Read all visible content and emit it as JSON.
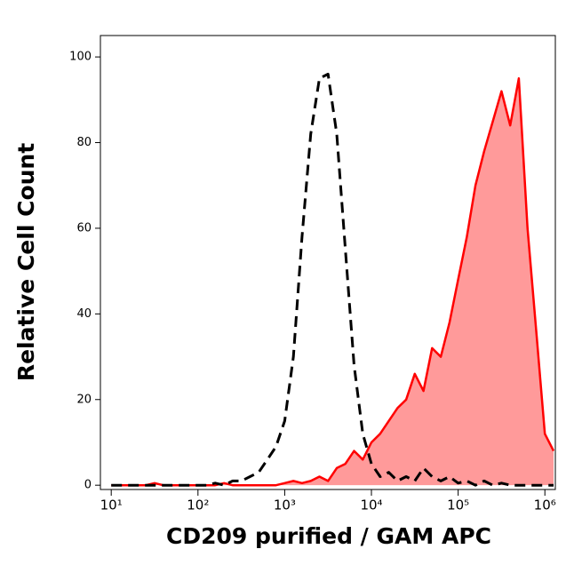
{
  "chart_data": {
    "type": "histogram-overlay",
    "x_label": "CD209 purified / GAM APC",
    "y_label": "Relative Cell Count",
    "x_scale": "log",
    "xlim": [
      7.5,
      1320000
    ],
    "xticks": [
      {
        "value": 10,
        "label": "10¹"
      },
      {
        "value": 100,
        "label": "10²"
      },
      {
        "value": 1000,
        "label": "10³"
      },
      {
        "value": 10000,
        "label": "10⁴"
      },
      {
        "value": 100000,
        "label": "10⁵"
      },
      {
        "value": 1000000,
        "label": "10⁶"
      }
    ],
    "ylim": [
      -1,
      105
    ],
    "yticks": [
      0,
      20,
      40,
      60,
      80,
      100
    ],
    "x": [
      10,
      12.6,
      15.8,
      20,
      25.1,
      31.6,
      39.8,
      50.1,
      63.1,
      79.4,
      100,
      126,
      158,
      200,
      251,
      316,
      398,
      501,
      631,
      794,
      1000,
      1259,
      1585,
      1995,
      2512,
      3162,
      3981,
      5012,
      6310,
      7943,
      10000,
      12589,
      15849,
      19953,
      25119,
      31623,
      39811,
      50119,
      63096,
      79433,
      100000,
      125893,
      158489,
      199526,
      251189,
      316228,
      398107,
      501187,
      630957,
      794328,
      1000000,
      1258925
    ],
    "series": [
      {
        "color": "#ff0000",
        "fill_color": "#ff9a9a",
        "linestyle": "solid",
        "filled": true,
        "values": [
          0,
          0,
          0,
          0,
          0,
          0.5,
          0,
          0,
          0,
          0,
          0,
          0,
          0,
          0.5,
          0,
          0,
          0,
          0,
          0,
          0,
          0.5,
          1,
          0.5,
          1,
          2,
          1,
          4,
          5,
          8,
          6,
          10,
          12,
          15,
          18,
          20,
          26,
          22,
          32,
          30,
          38,
          48,
          58,
          70,
          78,
          85,
          92,
          84,
          95,
          60,
          36,
          12,
          8
        ]
      },
      {
        "color": "#000000",
        "linestyle": "dashed",
        "filled": false,
        "values": [
          0,
          0,
          0,
          0,
          0,
          0,
          0,
          0,
          0,
          0,
          0,
          0,
          0.5,
          0,
          1,
          1,
          2,
          3,
          6,
          9,
          15,
          30,
          58,
          82,
          95,
          96,
          82,
          55,
          28,
          12,
          5,
          2,
          3,
          1,
          2,
          1,
          4,
          2,
          1,
          2,
          0.5,
          1,
          0,
          1,
          0,
          0.5,
          0,
          0,
          0,
          0,
          0,
          0
        ]
      }
    ]
  }
}
